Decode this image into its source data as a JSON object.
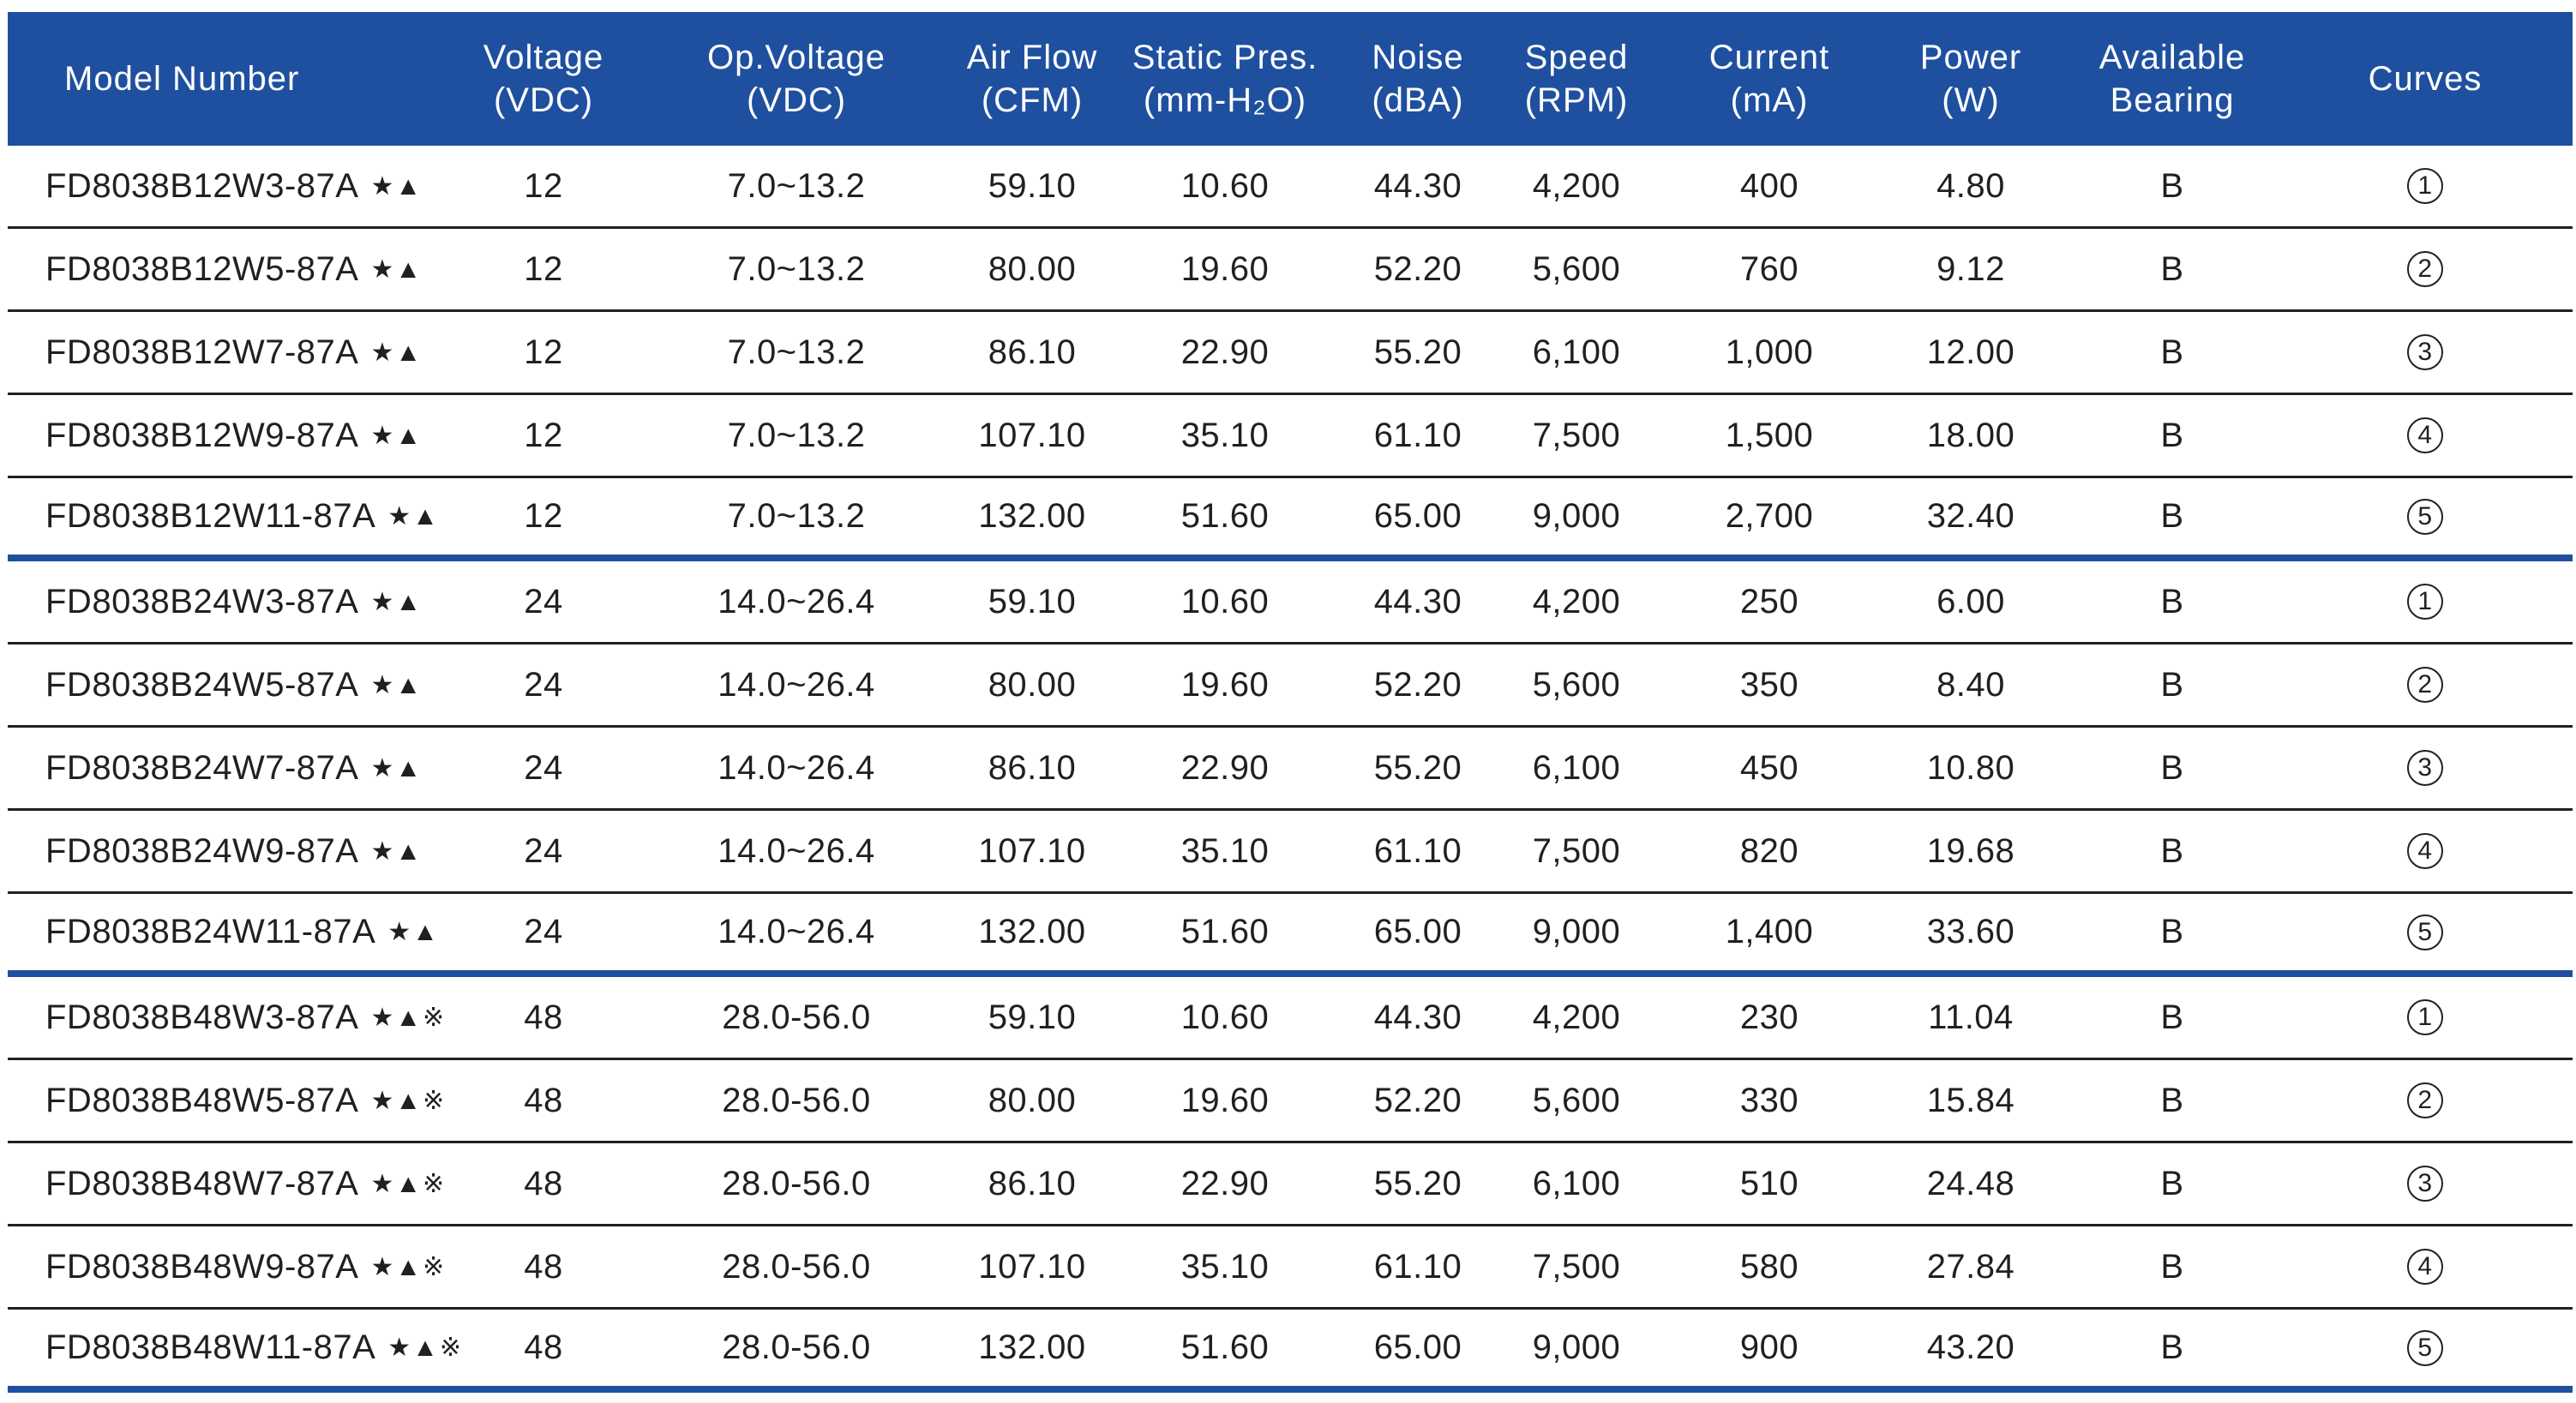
{
  "header": {
    "model": [
      "Model Number"
    ],
    "voltage": [
      "Voltage",
      "(VDC)"
    ],
    "op_voltage": [
      "Op.Voltage",
      "(VDC)"
    ],
    "airflow": [
      "Air Flow",
      "(CFM)"
    ],
    "static_pres": [
      "Static Pres.",
      "(mm-H₂O)"
    ],
    "noise": [
      "Noise",
      "(dBA)"
    ],
    "speed": [
      "Speed",
      "(RPM)"
    ],
    "current": [
      "Current",
      "(mA)"
    ],
    "power": [
      "Power",
      "(W)"
    ],
    "bearing": [
      "Available",
      "Bearing"
    ],
    "curves": [
      "Curves"
    ]
  },
  "colors": {
    "header_bg": "#1f50a0",
    "group_rule": "#1f50a0",
    "row_rule": "#231f20"
  },
  "rows": [
    {
      "model": "FD8038B12W3-87A",
      "marks": "★▲",
      "voltage": "12",
      "op_voltage": "7.0~13.2",
      "airflow": "59.10",
      "static_pres": "10.60",
      "noise": "44.30",
      "speed": "4,200",
      "current": "400",
      "power": "4.80",
      "bearing": "B",
      "curve": "1"
    },
    {
      "model": "FD8038B12W5-87A",
      "marks": "★▲",
      "voltage": "12",
      "op_voltage": "7.0~13.2",
      "airflow": "80.00",
      "static_pres": "19.60",
      "noise": "52.20",
      "speed": "5,600",
      "current": "760",
      "power": "9.12",
      "bearing": "B",
      "curve": "2"
    },
    {
      "model": "FD8038B12W7-87A",
      "marks": "★▲",
      "voltage": "12",
      "op_voltage": "7.0~13.2",
      "airflow": "86.10",
      "static_pres": "22.90",
      "noise": "55.20",
      "speed": "6,100",
      "current": "1,000",
      "power": "12.00",
      "bearing": "B",
      "curve": "3"
    },
    {
      "model": "FD8038B12W9-87A",
      "marks": "★▲",
      "voltage": "12",
      "op_voltage": "7.0~13.2",
      "airflow": "107.10",
      "static_pres": "35.10",
      "noise": "61.10",
      "speed": "7,500",
      "current": "1,500",
      "power": "18.00",
      "bearing": "B",
      "curve": "4"
    },
    {
      "model": "FD8038B12W11-87A",
      "marks": "★▲",
      "voltage": "12",
      "op_voltage": "7.0~13.2",
      "airflow": "132.00",
      "static_pres": "51.60",
      "noise": "65.00",
      "speed": "9,000",
      "current": "2,700",
      "power": "32.40",
      "bearing": "B",
      "curve": "5",
      "group_end": true
    },
    {
      "model": "FD8038B24W3-87A",
      "marks": "★▲",
      "voltage": "24",
      "op_voltage": "14.0~26.4",
      "airflow": "59.10",
      "static_pres": "10.60",
      "noise": "44.30",
      "speed": "4,200",
      "current": "250",
      "power": "6.00",
      "bearing": "B",
      "curve": "1"
    },
    {
      "model": "FD8038B24W5-87A",
      "marks": "★▲",
      "voltage": "24",
      "op_voltage": "14.0~26.4",
      "airflow": "80.00",
      "static_pres": "19.60",
      "noise": "52.20",
      "speed": "5,600",
      "current": "350",
      "power": "8.40",
      "bearing": "B",
      "curve": "2"
    },
    {
      "model": "FD8038B24W7-87A",
      "marks": "★▲",
      "voltage": "24",
      "op_voltage": "14.0~26.4",
      "airflow": "86.10",
      "static_pres": "22.90",
      "noise": "55.20",
      "speed": "6,100",
      "current": "450",
      "power": "10.80",
      "bearing": "B",
      "curve": "3"
    },
    {
      "model": "FD8038B24W9-87A",
      "marks": "★▲",
      "voltage": "24",
      "op_voltage": "14.0~26.4",
      "airflow": "107.10",
      "static_pres": "35.10",
      "noise": "61.10",
      "speed": "7,500",
      "current": "820",
      "power": "19.68",
      "bearing": "B",
      "curve": "4"
    },
    {
      "model": "FD8038B24W11-87A",
      "marks": "★▲",
      "voltage": "24",
      "op_voltage": "14.0~26.4",
      "airflow": "132.00",
      "static_pres": "51.60",
      "noise": "65.00",
      "speed": "9,000",
      "current": "1,400",
      "power": "33.60",
      "bearing": "B",
      "curve": "5",
      "group_end": true
    },
    {
      "model": "FD8038B48W3-87A",
      "marks": "★▲※",
      "voltage": "48",
      "op_voltage": "28.0-56.0",
      "airflow": "59.10",
      "static_pres": "10.60",
      "noise": "44.30",
      "speed": "4,200",
      "current": "230",
      "power": "11.04",
      "bearing": "B",
      "curve": "1"
    },
    {
      "model": "FD8038B48W5-87A",
      "marks": "★▲※",
      "voltage": "48",
      "op_voltage": "28.0-56.0",
      "airflow": "80.00",
      "static_pres": "19.60",
      "noise": "52.20",
      "speed": "5,600",
      "current": "330",
      "power": "15.84",
      "bearing": "B",
      "curve": "2"
    },
    {
      "model": "FD8038B48W7-87A",
      "marks": "★▲※",
      "voltage": "48",
      "op_voltage": "28.0-56.0",
      "airflow": "86.10",
      "static_pres": "22.90",
      "noise": "55.20",
      "speed": "6,100",
      "current": "510",
      "power": "24.48",
      "bearing": "B",
      "curve": "3"
    },
    {
      "model": "FD8038B48W9-87A",
      "marks": "★▲※",
      "voltage": "48",
      "op_voltage": "28.0-56.0",
      "airflow": "107.10",
      "static_pres": "35.10",
      "noise": "61.10",
      "speed": "7,500",
      "current": "580",
      "power": "27.84",
      "bearing": "B",
      "curve": "4"
    },
    {
      "model": "FD8038B48W11-87A",
      "marks": "★▲※",
      "voltage": "48",
      "op_voltage": "28.0-56.0",
      "airflow": "132.00",
      "static_pres": "51.60",
      "noise": "65.00",
      "speed": "9,000",
      "current": "900",
      "power": "43.20",
      "bearing": "B",
      "curve": "5",
      "group_end": true
    }
  ]
}
